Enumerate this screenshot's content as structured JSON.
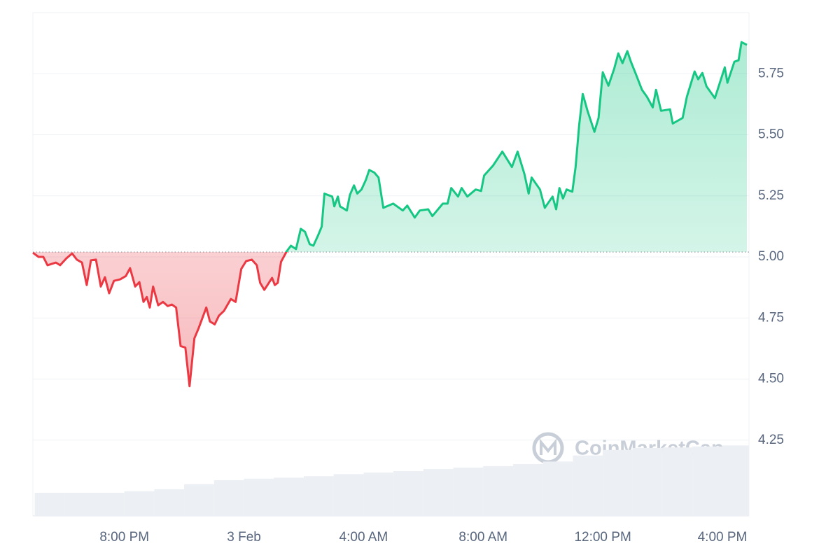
{
  "chart_data": {
    "type": "line",
    "watermark": "CoinMarketCap",
    "baseline": 5.02,
    "colors": {
      "up": "#16c784",
      "down": "#ea3943"
    },
    "x": [
      -7.06,
      -6.87,
      -6.71,
      -6.57,
      -6.29,
      -6.15,
      -5.94,
      -5.75,
      -5.59,
      -5.42,
      -5.26,
      -5.12,
      -4.95,
      -4.79,
      -4.65,
      -4.51,
      -4.35,
      -4.14,
      -3.95,
      -3.81,
      -3.64,
      -3.5,
      -3.36,
      -3.25,
      -3.15,
      -3.04,
      -2.87,
      -2.71,
      -2.55,
      -2.41,
      -2.27,
      -2.12,
      -1.96,
      -1.82,
      -1.66,
      -1.52,
      -1.26,
      -1.14,
      -0.98,
      -0.84,
      -0.67,
      -0.44,
      -0.28,
      -0.09,
      0.07,
      0.26,
      0.43,
      0.54,
      0.68,
      0.94,
      1.03,
      1.13,
      1.24,
      1.43,
      1.57,
      1.74,
      1.9,
      2.04,
      2.2,
      2.32,
      2.48,
      2.6,
      2.69,
      2.95,
      3.02,
      3.14,
      3.21,
      3.44,
      3.54,
      3.68,
      3.79,
      3.93,
      4.08,
      4.19,
      4.36,
      4.5,
      4.66,
      4.99,
      5.31,
      5.46,
      5.71,
      5.88,
      6.16,
      6.3,
      6.65,
      6.81,
      6.93,
      7.16,
      7.28,
      7.47,
      7.75,
      7.93,
      8.03,
      8.33,
      8.64,
      8.96,
      9.15,
      9.38,
      9.52,
      9.62,
      9.9,
      10.06,
      10.32,
      10.44,
      10.55,
      10.67,
      10.79,
      10.98,
      11.09,
      11.21,
      11.33,
      11.49,
      11.72,
      11.86,
      12,
      12.19,
      12.38,
      12.52,
      12.66,
      12.82,
      12.94,
      13.13,
      13.31,
      13.48,
      13.67,
      13.78,
      13.95,
      14.25,
      14.34,
      14.67,
      14.81,
      15.07,
      15.19,
      15.33,
      15.47,
      15.75,
      16.08,
      16.17,
      16.4,
      16.54,
      16.64,
      16.82
    ],
    "series": [
      {
        "values": [
          5.017,
          5,
          5,
          4.966,
          4.977,
          4.966,
          4.994,
          5.014,
          4.989,
          4.977,
          4.885,
          4.986,
          4.989,
          4.879,
          4.917,
          4.851,
          4.902,
          4.908,
          4.922,
          4.954,
          4.879,
          4.897,
          4.816,
          4.836,
          4.793,
          4.879,
          4.802,
          4.816,
          4.799,
          4.805,
          4.793,
          4.635,
          4.629,
          4.471,
          4.667,
          4.707,
          4.793,
          4.736,
          4.724,
          4.759,
          4.779,
          4.828,
          4.816,
          4.951,
          4.983,
          4.989,
          4.966,
          4.894,
          4.865,
          4.914,
          4.885,
          4.894,
          4.98,
          5.023,
          5.046,
          5.032,
          5.115,
          5.103,
          5.052,
          5.046,
          5.089,
          5.124,
          5.259,
          5.247,
          5.207,
          5.247,
          5.207,
          5.19,
          5.253,
          5.293,
          5.259,
          5.276,
          5.316,
          5.356,
          5.345,
          5.325,
          5.201,
          5.218,
          5.19,
          5.21,
          5.161,
          5.19,
          5.195,
          5.167,
          5.218,
          5.218,
          5.282,
          5.247,
          5.282,
          5.247,
          5.276,
          5.27,
          5.333,
          5.374,
          5.431,
          5.368,
          5.431,
          5.339,
          5.259,
          5.325,
          5.276,
          5.201,
          5.247,
          5.195,
          5.282,
          5.239,
          5.276,
          5.267,
          5.368,
          5.54,
          5.667,
          5.598,
          5.512,
          5.569,
          5.756,
          5.701,
          5.77,
          5.833,
          5.793,
          5.842,
          5.799,
          5.741,
          5.684,
          5.655,
          5.612,
          5.684,
          5.598,
          5.604,
          5.546,
          5.569,
          5.655,
          5.759,
          5.727,
          5.753,
          5.698,
          5.65,
          5.776,
          5.713,
          5.799,
          5.805,
          5.879,
          5.868
        ]
      }
    ],
    "volume": {
      "axis": "y2",
      "color": "#eceff3",
      "x": [
        -7,
        -6,
        -5,
        -4,
        -3,
        -2,
        -1,
        0,
        1,
        2,
        3,
        4,
        5,
        6,
        7,
        8,
        9,
        10,
        11,
        12,
        13,
        14,
        15,
        16
      ],
      "values": [
        4.6,
        4.6,
        4.6,
        4.9,
        5.3,
        6.3,
        7.1,
        7.4,
        7.6,
        7.9,
        8.3,
        8.6,
        8.9,
        9.3,
        9.6,
        9.9,
        10.3,
        10.8,
        12.0,
        13.1,
        13.5,
        13.6,
        13.8,
        14.0
      ]
    },
    "xlim": [
      -7.06,
      16.89
    ],
    "xticks": [
      {
        "value": -4,
        "label": "8:00 PM"
      },
      {
        "value": 0,
        "label": "3 Feb"
      },
      {
        "value": 4,
        "label": "4:00 AM"
      },
      {
        "value": 8,
        "label": "8:00 AM"
      },
      {
        "value": 12,
        "label": "12:00 PM"
      },
      {
        "value": 16,
        "label": "4:00 PM"
      }
    ],
    "ylim": [
      3.94,
      6.0
    ],
    "yticks": [
      4.25,
      {
        "value": 4.5,
        "label": "4.50"
      },
      4.75,
      {
        "value": 5,
        "label": "5.00"
      },
      5.25,
      {
        "value": 5.5,
        "label": "5.50"
      },
      5.75
    ],
    "y2lim": [
      0,
      100
    ],
    "grid": true
  }
}
